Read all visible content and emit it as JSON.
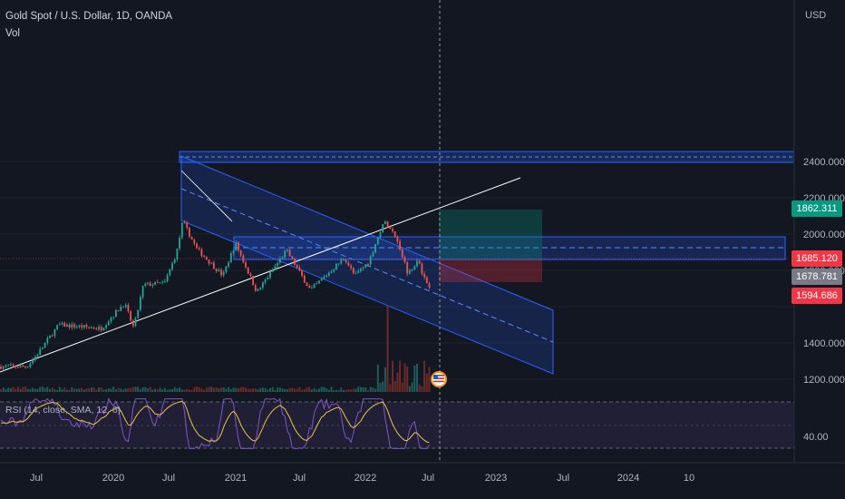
{
  "header": {
    "symbol_title": "Gold Spot / U.S. Dollar, 1D, OANDA",
    "volume_label": "Vol",
    "rsi_label": "RSI (14, close, SMA, 12, 6)"
  },
  "price_axis": {
    "currency": "USD",
    "ticks": [
      "2400.000",
      "2200.000",
      "2000.000",
      "1800.000",
      "1400.000",
      "1200.000"
    ],
    "tick_values": [
      2400,
      2200,
      2000,
      1800,
      1400,
      1200
    ],
    "rsi_tick": "40.00"
  },
  "time_axis": {
    "labels": [
      "Jul",
      "2020",
      "Jul",
      "2021",
      "Jul",
      "2022",
      "Jul",
      "2023",
      "Jul",
      "2024",
      "10"
    ]
  },
  "price_tags": [
    {
      "label": "1862.311",
      "color": "#089981"
    },
    {
      "label": "1685.120",
      "color": "#f23645"
    },
    {
      "label": "1678.781",
      "color": "#787b86"
    },
    {
      "label": "1594.686",
      "color": "#f23645"
    }
  ],
  "colors": {
    "background": "#131722",
    "up": "#26a69a",
    "down": "#ef5350",
    "channel": "#2962ff",
    "rsi_line": "#e8c547",
    "rsi_band": "#7e57c2"
  },
  "chart_data": {
    "type": "candlestick",
    "symbol": "Gold Spot / U.S. Dollar",
    "interval": "1D",
    "source": "OANDA",
    "ylim": [
      1200,
      2500
    ],
    "path": [
      [
        "2019-05-15",
        1270
      ],
      [
        "2019-06-15",
        1340
      ],
      [
        "2019-07-15",
        1420
      ],
      [
        "2019-08-15",
        1500
      ],
      [
        "2019-10-15",
        1490
      ],
      [
        "2019-12-15",
        1480
      ],
      [
        "2020-02-20",
        1620
      ],
      [
        "2020-03-18",
        1480
      ],
      [
        "2020-04-15",
        1720
      ],
      [
        "2020-06-15",
        1730
      ],
      [
        "2020-07-20",
        1900
      ],
      [
        "2020-08-06",
        2070
      ],
      [
        "2020-09-15",
        1920
      ],
      [
        "2020-11-30",
        1770
      ],
      [
        "2021-01-05",
        1950
      ],
      [
        "2021-03-08",
        1680
      ],
      [
        "2021-06-01",
        1910
      ],
      [
        "2021-08-09",
        1690
      ],
      [
        "2021-11-15",
        1870
      ],
      [
        "2021-12-15",
        1770
      ],
      [
        "2022-01-25",
        1850
      ],
      [
        "2022-03-08",
        2070
      ],
      [
        "2022-04-15",
        1980
      ],
      [
        "2022-05-16",
        1790
      ],
      [
        "2022-06-15",
        1850
      ],
      [
        "2022-07-07",
        1740
      ],
      [
        "2022-07-19",
        1700
      ]
    ],
    "price_tags": [
      1862.311,
      1685.12,
      1678.781,
      1594.686
    ],
    "ath_zone": [
      2040,
      2075
    ],
    "support_zone": [
      1685,
      1760
    ]
  }
}
